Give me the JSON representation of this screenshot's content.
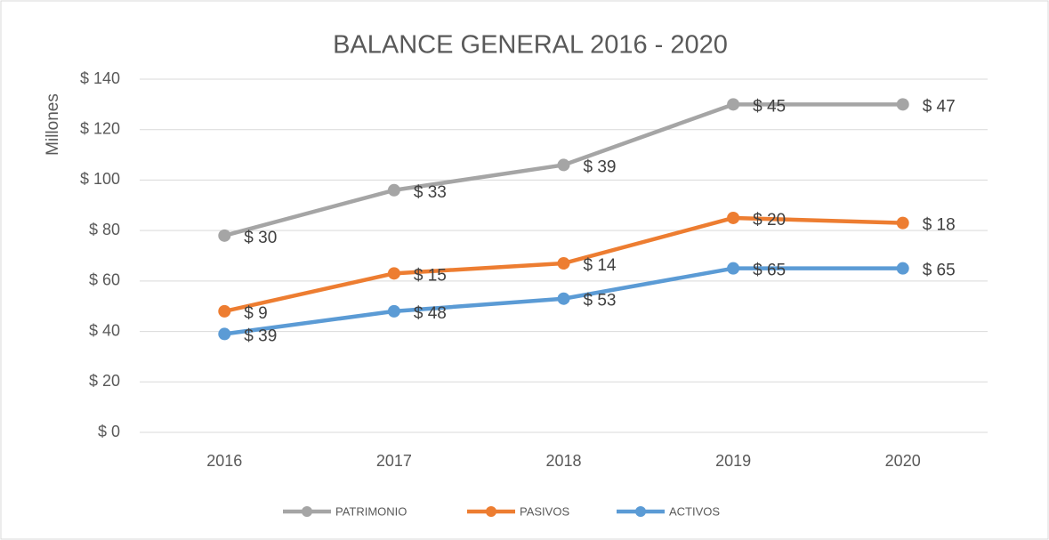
{
  "chart_data": {
    "type": "line",
    "stacked": true,
    "title": "BALANCE GENERAL 2016 - 2020",
    "ylabel": "Millones",
    "categories": [
      "2016",
      "2017",
      "2018",
      "2019",
      "2020"
    ],
    "series": [
      {
        "name": "ACTIVOS",
        "color": "#5b9bd5",
        "values": [
          39,
          48,
          53,
          65,
          65
        ],
        "value_labels": [
          "$ 39",
          "$ 48",
          "$ 53",
          "$ 65",
          "$ 65"
        ]
      },
      {
        "name": "PASIVOS",
        "color": "#ed7d31",
        "values": [
          9,
          15,
          14,
          20,
          18
        ],
        "value_labels": [
          "$ 9",
          "$ 15",
          "$ 14",
          "$ 20",
          "$ 18"
        ]
      },
      {
        "name": "PATRIMONIO",
        "color": "#a5a5a5",
        "values": [
          30,
          33,
          39,
          45,
          47
        ],
        "value_labels": [
          "$ 30",
          "$ 33",
          "$ 39",
          "$ 45",
          "$ 47"
        ]
      }
    ],
    "ylim": [
      0,
      140
    ],
    "yticks": [
      {
        "value": 0,
        "label": "$ 0"
      },
      {
        "value": 20,
        "label": "$ 20"
      },
      {
        "value": 40,
        "label": "$ 40"
      },
      {
        "value": 60,
        "label": "$ 60"
      },
      {
        "value": 80,
        "label": "$ 80"
      },
      {
        "value": 100,
        "label": "$ 100"
      },
      {
        "value": 120,
        "label": "$ 120"
      },
      {
        "value": 140,
        "label": "$ 140"
      }
    ],
    "grid": true,
    "legend": "bottom"
  }
}
